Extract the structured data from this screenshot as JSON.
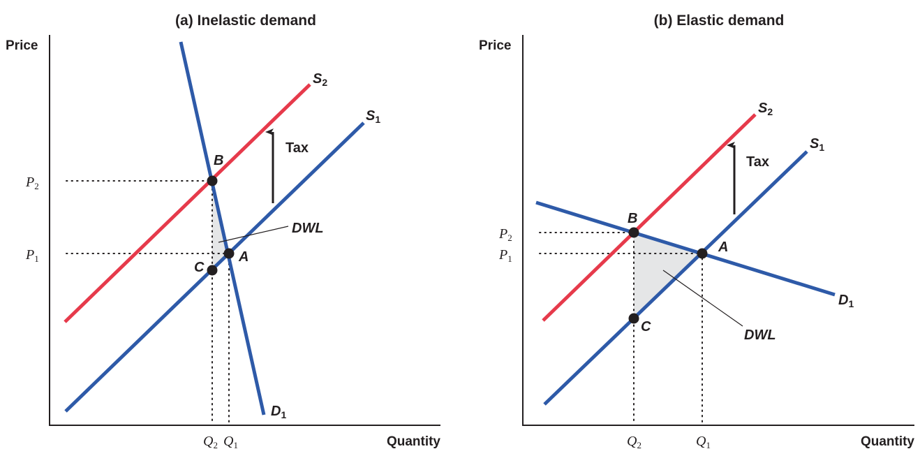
{
  "panels": [
    {
      "id": "a",
      "title": "(a) Inelastic demand",
      "y_axis_label": "Price",
      "x_axis_label": "Quantity",
      "curves": {
        "supply1": {
          "letter": "S",
          "sub": "1",
          "color": "#2e5aa8"
        },
        "supply2": {
          "letter": "S",
          "sub": "2",
          "color": "#e63a4b"
        },
        "demand": {
          "letter": "D",
          "sub": "1",
          "color": "#2e5aa8"
        }
      },
      "points": {
        "A": "A",
        "B": "B",
        "C": "C"
      },
      "price_ticks": {
        "p2": {
          "letter": "P",
          "sub": "2"
        },
        "p1": {
          "letter": "P",
          "sub": "1"
        }
      },
      "quantity_ticks": {
        "q2": {
          "letter": "Q",
          "sub": "2"
        },
        "q1": {
          "letter": "Q",
          "sub": "1"
        }
      },
      "tax_label": "Tax",
      "dwl_label": "DWL"
    },
    {
      "id": "b",
      "title": "(b) Elastic demand",
      "y_axis_label": "Price",
      "x_axis_label": "Quantity",
      "curves": {
        "supply1": {
          "letter": "S",
          "sub": "1",
          "color": "#2e5aa8"
        },
        "supply2": {
          "letter": "S",
          "sub": "2",
          "color": "#e63a4b"
        },
        "demand": {
          "letter": "D",
          "sub": "1",
          "color": "#2e5aa8"
        }
      },
      "points": {
        "A": "A",
        "B": "B",
        "C": "C"
      },
      "price_ticks": {
        "p2": {
          "letter": "P",
          "sub": "2"
        },
        "p1": {
          "letter": "P",
          "sub": "1"
        }
      },
      "quantity_ticks": {
        "q2": {
          "letter": "Q",
          "sub": "2"
        },
        "q1": {
          "letter": "Q",
          "sub": "1"
        }
      },
      "tax_label": "Tax",
      "dwl_label": "DWL"
    }
  ],
  "colors": {
    "supply": "#2e5aa8",
    "supply_taxed": "#e63a4b",
    "demand": "#2e5aa8",
    "dwl_fill": "#e5e6e7",
    "ink": "#231f20"
  }
}
